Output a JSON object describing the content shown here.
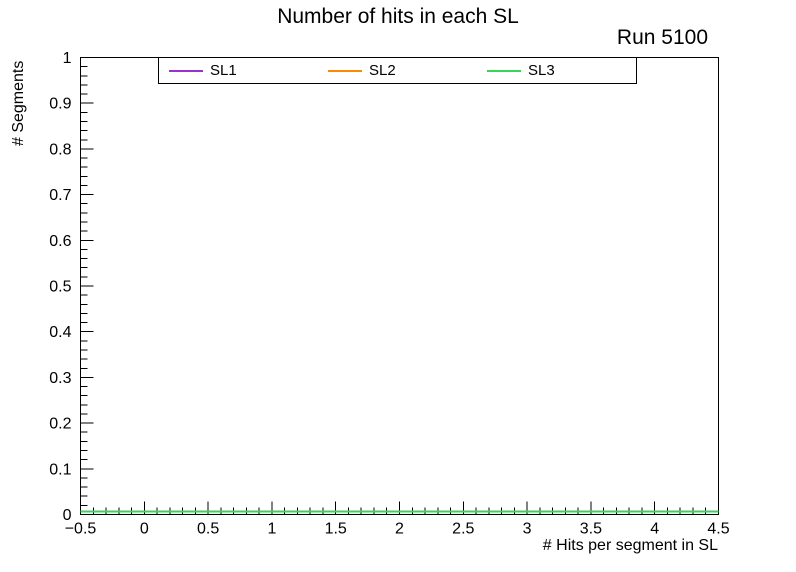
{
  "chart_data": {
    "type": "line",
    "title": "Number of hits in each SL",
    "annotations": [
      "Run 5100"
    ],
    "xlabel": "# Hits per segment in SL",
    "ylabel": "# Segments",
    "xlim": [
      -0.5,
      4.5
    ],
    "ylim": [
      0,
      1
    ],
    "grid": false,
    "legend_position": "top-inside",
    "x_major_ticks": [
      -0.5,
      0,
      0.5,
      1,
      1.5,
      2,
      2.5,
      3,
      3.5,
      4,
      4.5
    ],
    "x_tick_labels": [
      "−0.5",
      "0",
      "0.5",
      "1",
      "1.5",
      "2",
      "2.5",
      "3",
      "3.5",
      "4",
      "4.5"
    ],
    "x_minor_per_major": 5,
    "y_major_ticks": [
      0,
      0.1,
      0.2,
      0.3,
      0.4,
      0.5,
      0.6,
      0.7,
      0.8,
      0.9,
      1
    ],
    "y_tick_labels": [
      "0",
      "0.1",
      "0.2",
      "0.3",
      "0.4",
      "0.5",
      "0.6",
      "0.7",
      "0.8",
      "0.9",
      "1"
    ],
    "y_minor_per_major": 5,
    "series": [
      {
        "name": "SL1",
        "color": "#9933cc",
        "x": [
          -0.5,
          4.5
        ],
        "values": [
          0,
          0
        ]
      },
      {
        "name": "SL2",
        "color": "#ff8800",
        "x": [
          -0.5,
          4.5
        ],
        "values": [
          0,
          0
        ]
      },
      {
        "name": "SL3",
        "color": "#35d559",
        "x": [
          -0.5,
          4.5
        ],
        "values": [
          0,
          0
        ]
      }
    ]
  }
}
